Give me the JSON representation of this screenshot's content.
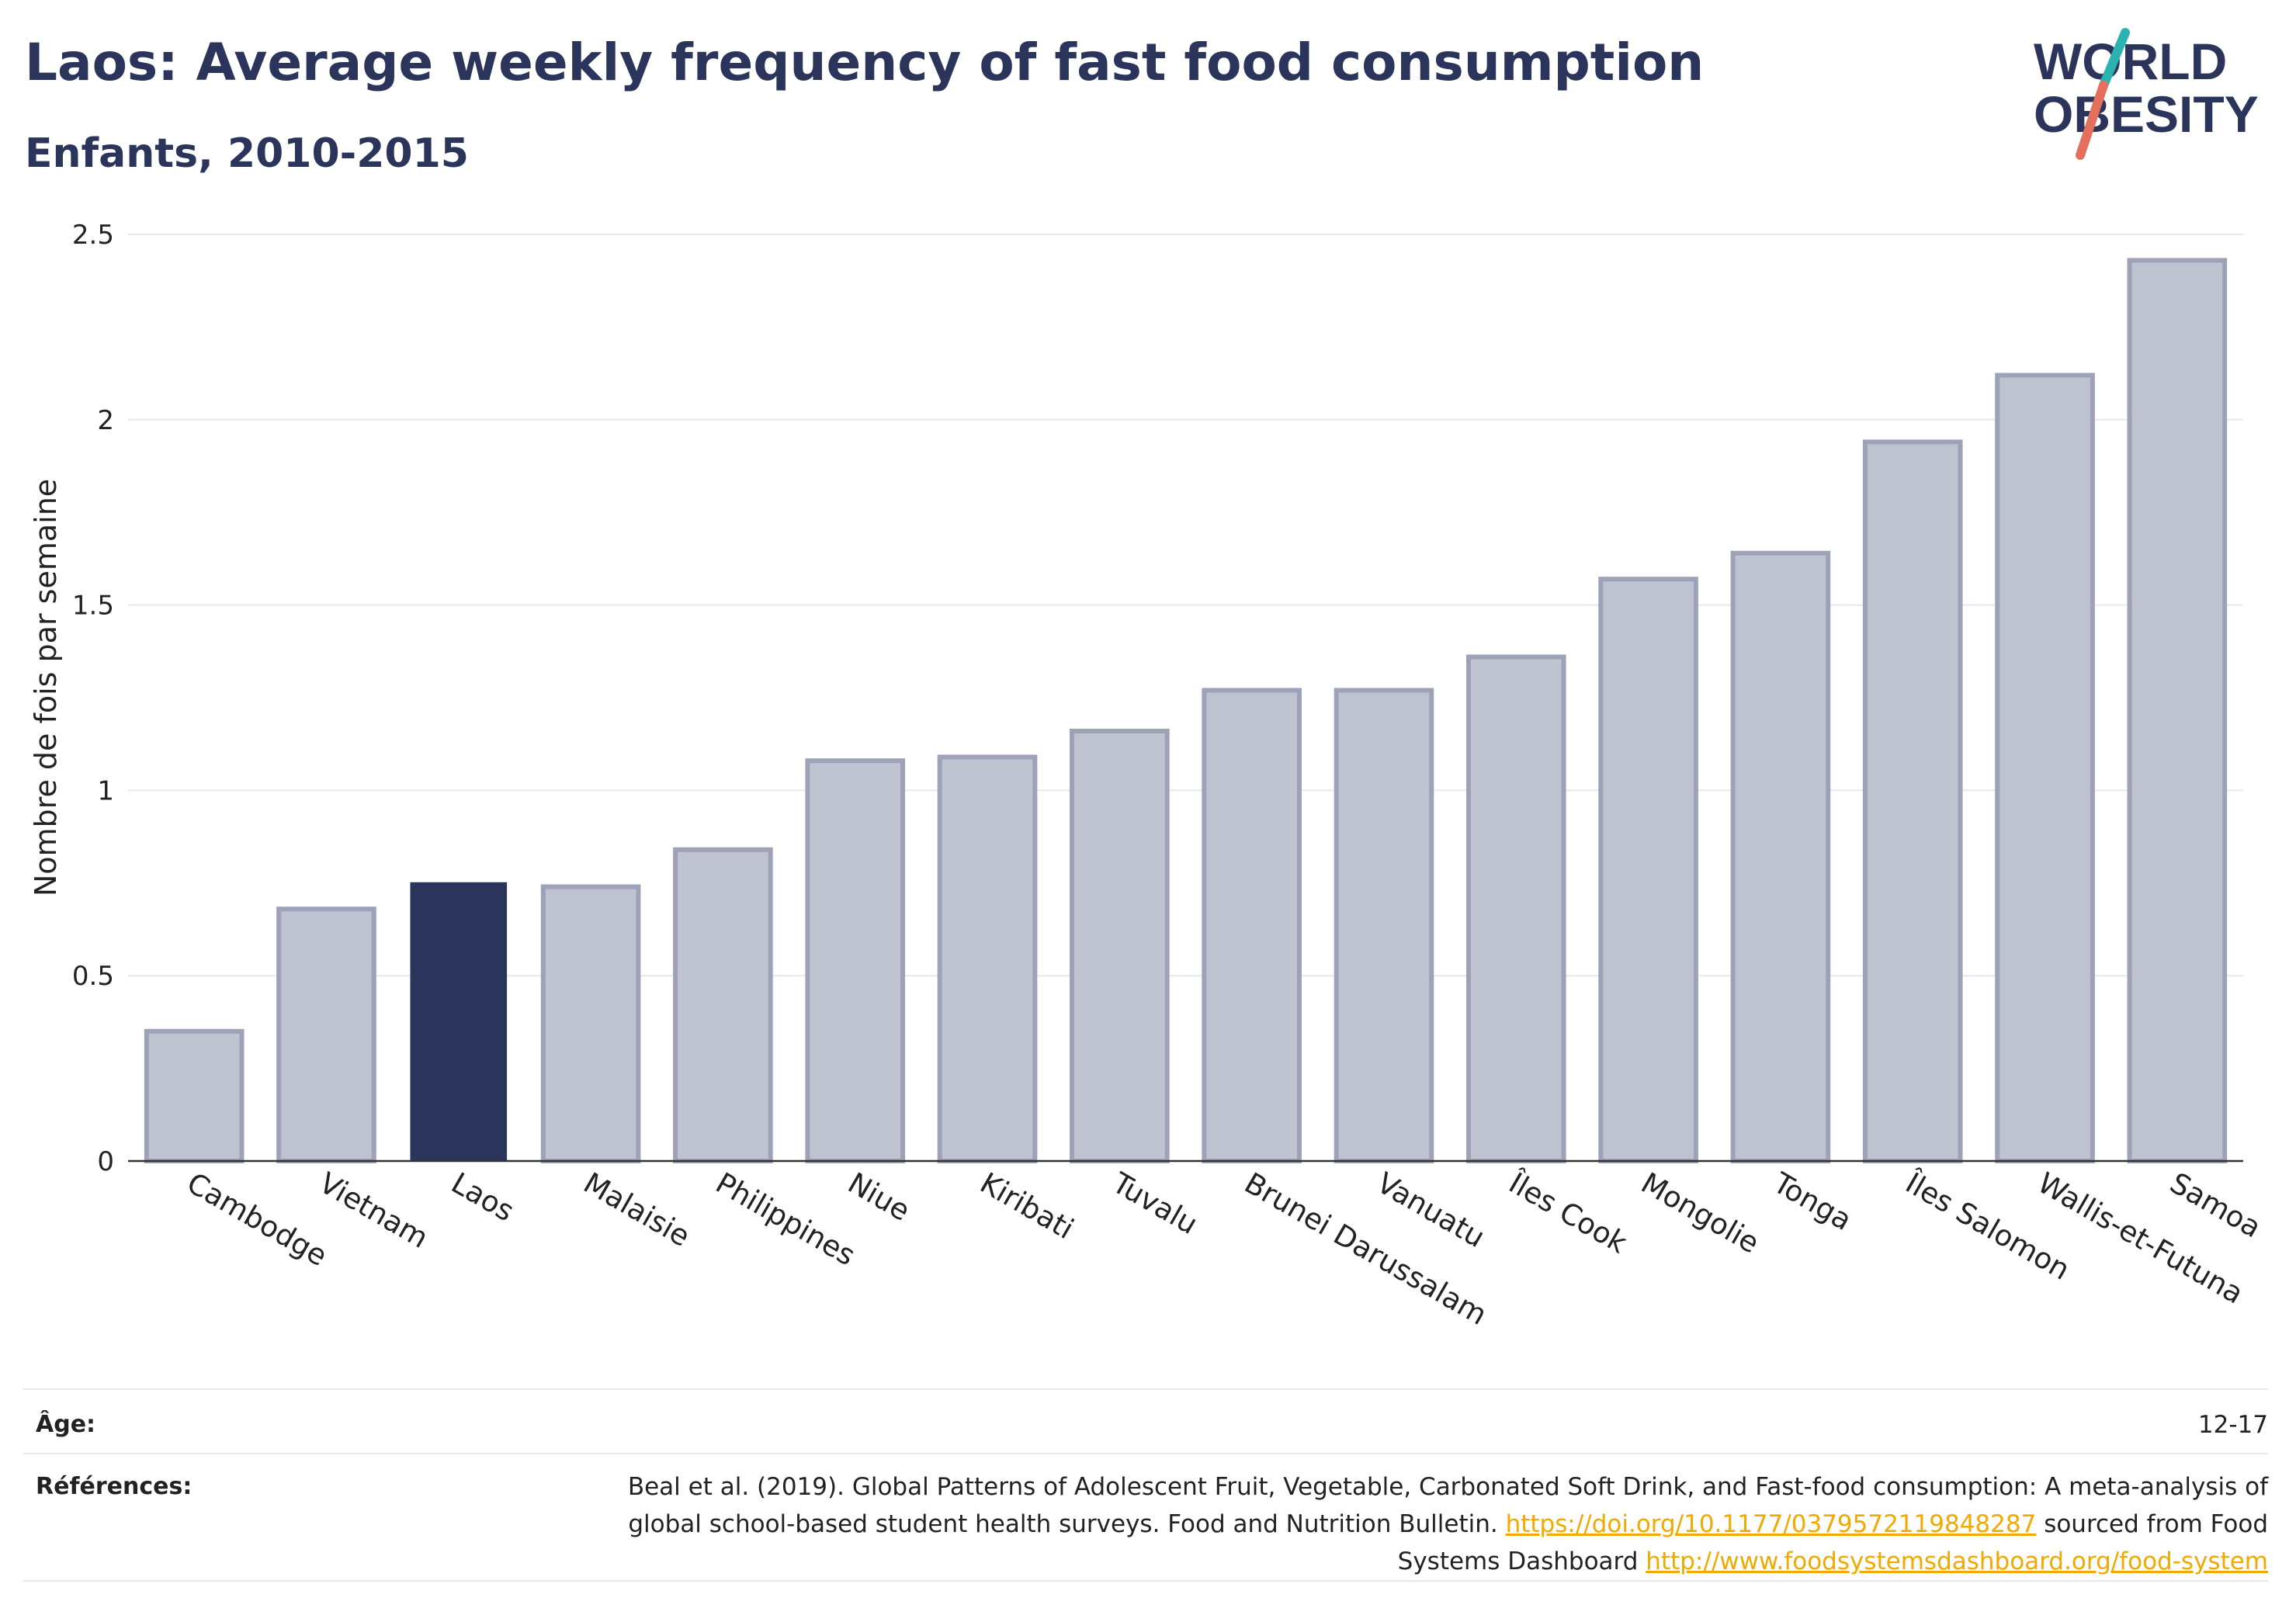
{
  "header": {
    "title": "Laos: Average weekly frequency of fast food consumption",
    "subtitle": "Enfants, 2010-2015"
  },
  "logo": {
    "line1": "WORLD",
    "line2": "OBESITY",
    "slash_colors": [
      "#2bb3b1",
      "#e46f5c"
    ]
  },
  "colors": {
    "highlight": "#2b355c",
    "bar": "#bfc2cf",
    "bar_border": "#9da2b8",
    "link": "#f2a900"
  },
  "chart_data": {
    "type": "bar",
    "categories": [
      "Cambodge",
      "Vietnam",
      "Laos",
      "Malaisie",
      "Philippines",
      "Niue",
      "Kiribati",
      "Tuvalu",
      "Brunei Darussalam",
      "Vanuatu",
      "Îles Cook",
      "Mongolie",
      "Tonga",
      "Îles Salomon",
      "Wallis-et-Futuna",
      "Samoa"
    ],
    "values": [
      0.35,
      0.68,
      0.75,
      0.74,
      0.84,
      1.08,
      1.09,
      1.16,
      1.27,
      1.27,
      1.36,
      1.57,
      1.64,
      1.94,
      2.12,
      2.43
    ],
    "highlight": "Laos",
    "ylabel": "Nombre de fois par semaine",
    "ylim": [
      0,
      2.5
    ],
    "yticks": [
      "0",
      "0.5",
      "1",
      "1.5",
      "2",
      "2.5"
    ],
    "ytick_values": [
      0,
      0.5,
      1,
      1.5,
      2,
      2.5
    ],
    "grid": true
  },
  "meta": {
    "age_label": "Âge:",
    "age_value": "12-17",
    "ref_label": "Références:",
    "ref_text_1": "Beal et al. (2019). Global Patterns of Adolescent Fruit, Vegetable, Carbonated Soft Drink, and Fast-food consumption: A meta-analysis of global school-based student health surveys. Food and Nutrition Bulletin.",
    "ref_link_1": "https://doi.org/10.1177/0379572119848287",
    "ref_text_2": "sourced from Food Systems Dashboard",
    "ref_link_2": "http://www.foodsystemsdashboard.org/food-system"
  }
}
